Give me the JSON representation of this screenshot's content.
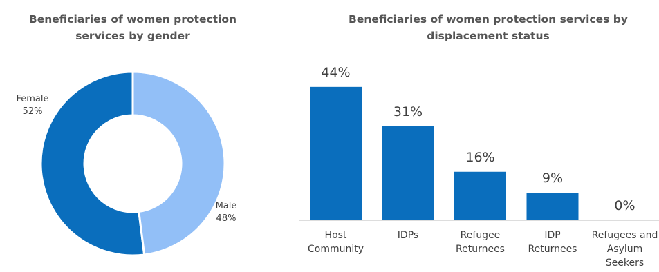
{
  "chart_data": [
    {
      "type": "donut",
      "title": "Beneficiaries of women protection services by gender",
      "categories": [
        "Female",
        "Male"
      ],
      "values": [
        52,
        48
      ],
      "value_labels": [
        "52%",
        "48%"
      ],
      "colors": [
        "#0a6ebd",
        "#92bff7"
      ]
    },
    {
      "type": "bar",
      "title": "Beneficiaries of women protection services by displacement status",
      "categories": [
        "Host Community",
        "IDPs",
        "Refugee Returnees",
        "IDP Returnees",
        "Refugees and Asylum Seekers"
      ],
      "values": [
        44,
        31,
        16,
        9,
        0
      ],
      "value_labels": [
        "44%",
        "31%",
        "16%",
        "9%",
        "0%"
      ],
      "color": "#0a6ebd"
    }
  ]
}
